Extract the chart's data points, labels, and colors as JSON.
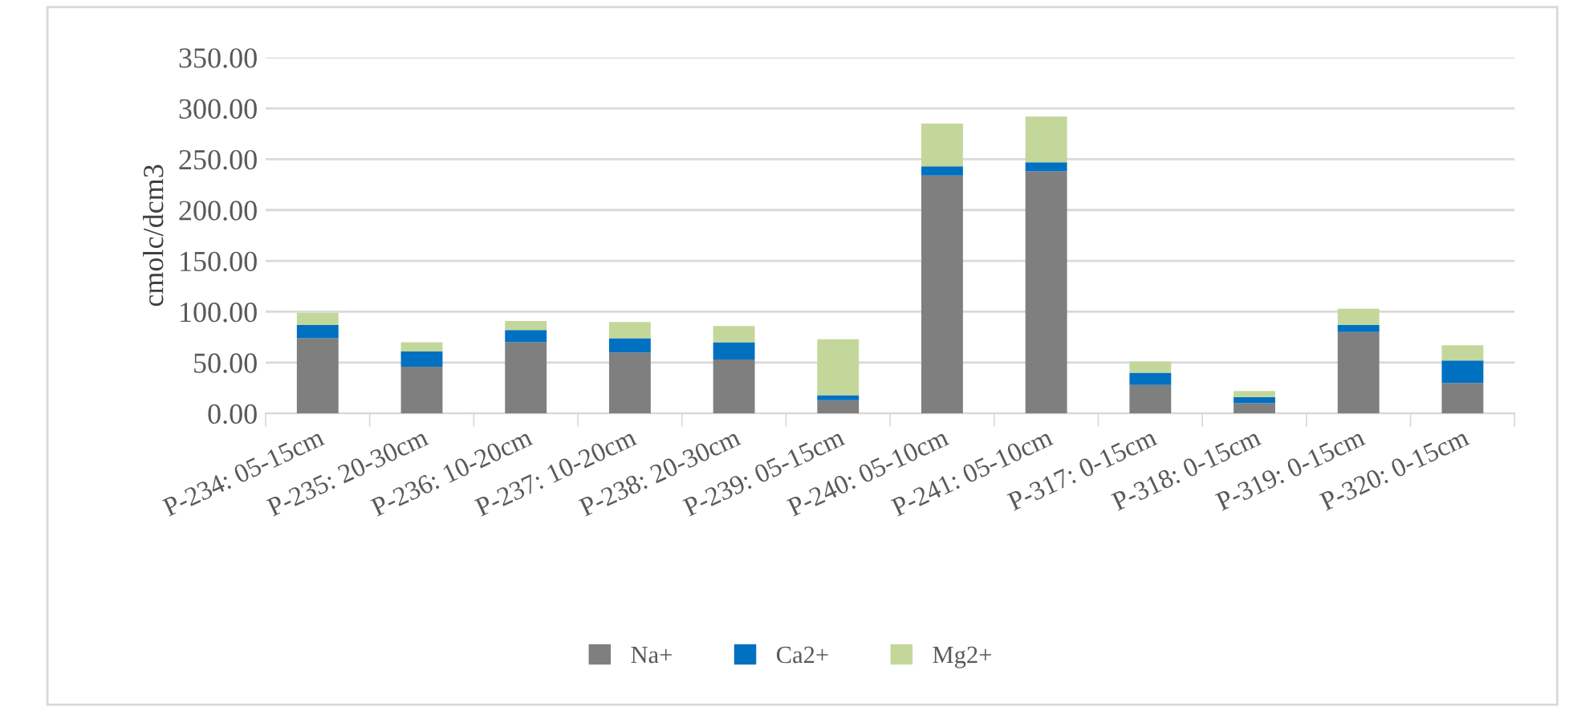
{
  "chart_data": {
    "type": "bar",
    "stacked": true,
    "ylabel": "cmolc/dcm3",
    "categories": [
      "P-234: 05-15cm",
      "P-235: 20-30cm",
      "P-236: 10-20cm",
      "P-237: 10-20cm",
      "P-238: 20-30cm",
      "P-239: 05-15cm",
      "P-240: 05-10cm",
      "P-241: 05-10cm",
      "P-317: 0-15cm",
      "P-318: 0-15cm",
      "P-319: 0-15cm",
      "P-320: 0-15cm"
    ],
    "series": [
      {
        "name": "Na+",
        "color": "#7f7f7f",
        "values": [
          74,
          46,
          70,
          60,
          53,
          13,
          234,
          238,
          28,
          10,
          80,
          30
        ]
      },
      {
        "name": "Ca2+",
        "color": "#0070c0",
        "values": [
          13,
          15,
          12,
          14,
          17,
          5,
          9,
          9,
          12,
          6,
          7,
          22
        ]
      },
      {
        "name": "Mg2+",
        "color": "#c4d79b",
        "values": [
          12,
          9,
          9,
          16,
          16,
          55,
          42,
          45,
          11,
          6,
          16,
          15
        ]
      }
    ],
    "ylim": [
      0,
      350
    ],
    "yticks": [
      {
        "value": 0,
        "label": "0.00"
      },
      {
        "value": 50,
        "label": "50.00"
      },
      {
        "value": 100,
        "label": "100.00"
      },
      {
        "value": 150,
        "label": "150.00"
      },
      {
        "value": 200,
        "label": "200.00"
      },
      {
        "value": 250,
        "label": "250.00"
      },
      {
        "value": 300,
        "label": "300.00"
      },
      {
        "value": 350,
        "label": "350.00"
      }
    ],
    "grid": "y",
    "legend": "bottom"
  }
}
